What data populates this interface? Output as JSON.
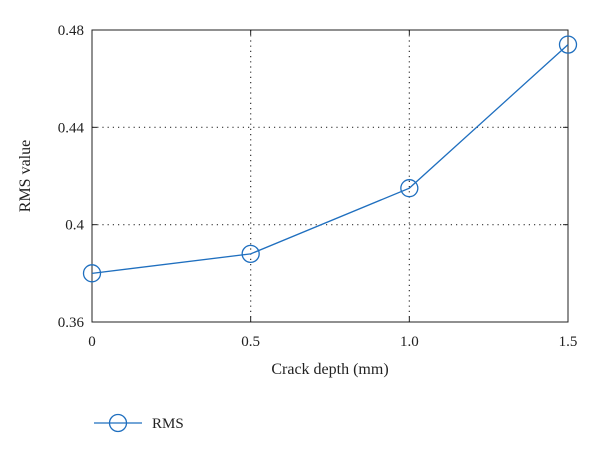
{
  "chart_data": {
    "type": "line",
    "title": "",
    "xlabel": "Crack depth (mm)",
    "ylabel": "RMS value",
    "x": [
      0,
      0.5,
      1.0,
      1.5
    ],
    "x_tick_labels": [
      "0",
      "0.5",
      "1.0",
      "1.5"
    ],
    "xlim": [
      0,
      1.5
    ],
    "ylim": [
      0.36,
      0.48
    ],
    "y_ticks": [
      0.36,
      0.4,
      0.44,
      0.48
    ],
    "y_tick_labels": [
      "0.36",
      "0.4",
      "0.44",
      "0.48"
    ],
    "grid": true,
    "grid_style": "dotted",
    "legend_position": "bottom-left",
    "series": [
      {
        "name": "RMS",
        "values": [
          0.38,
          0.388,
          0.415,
          0.474
        ],
        "color": "#1f6fbf",
        "marker": "circle-open"
      }
    ]
  }
}
